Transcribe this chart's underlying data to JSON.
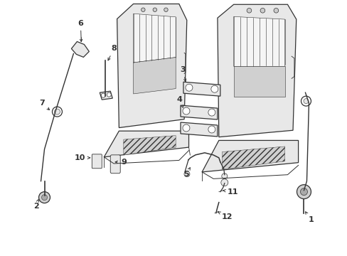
{
  "bg_color": "#ffffff",
  "line_color": "#333333",
  "figsize": [
    4.89,
    3.6
  ],
  "dpi": 100,
  "seat_fill": "#e8e8e8",
  "seat_mid": "#d0d0d0",
  "seat_dark": "#b8b8b8"
}
